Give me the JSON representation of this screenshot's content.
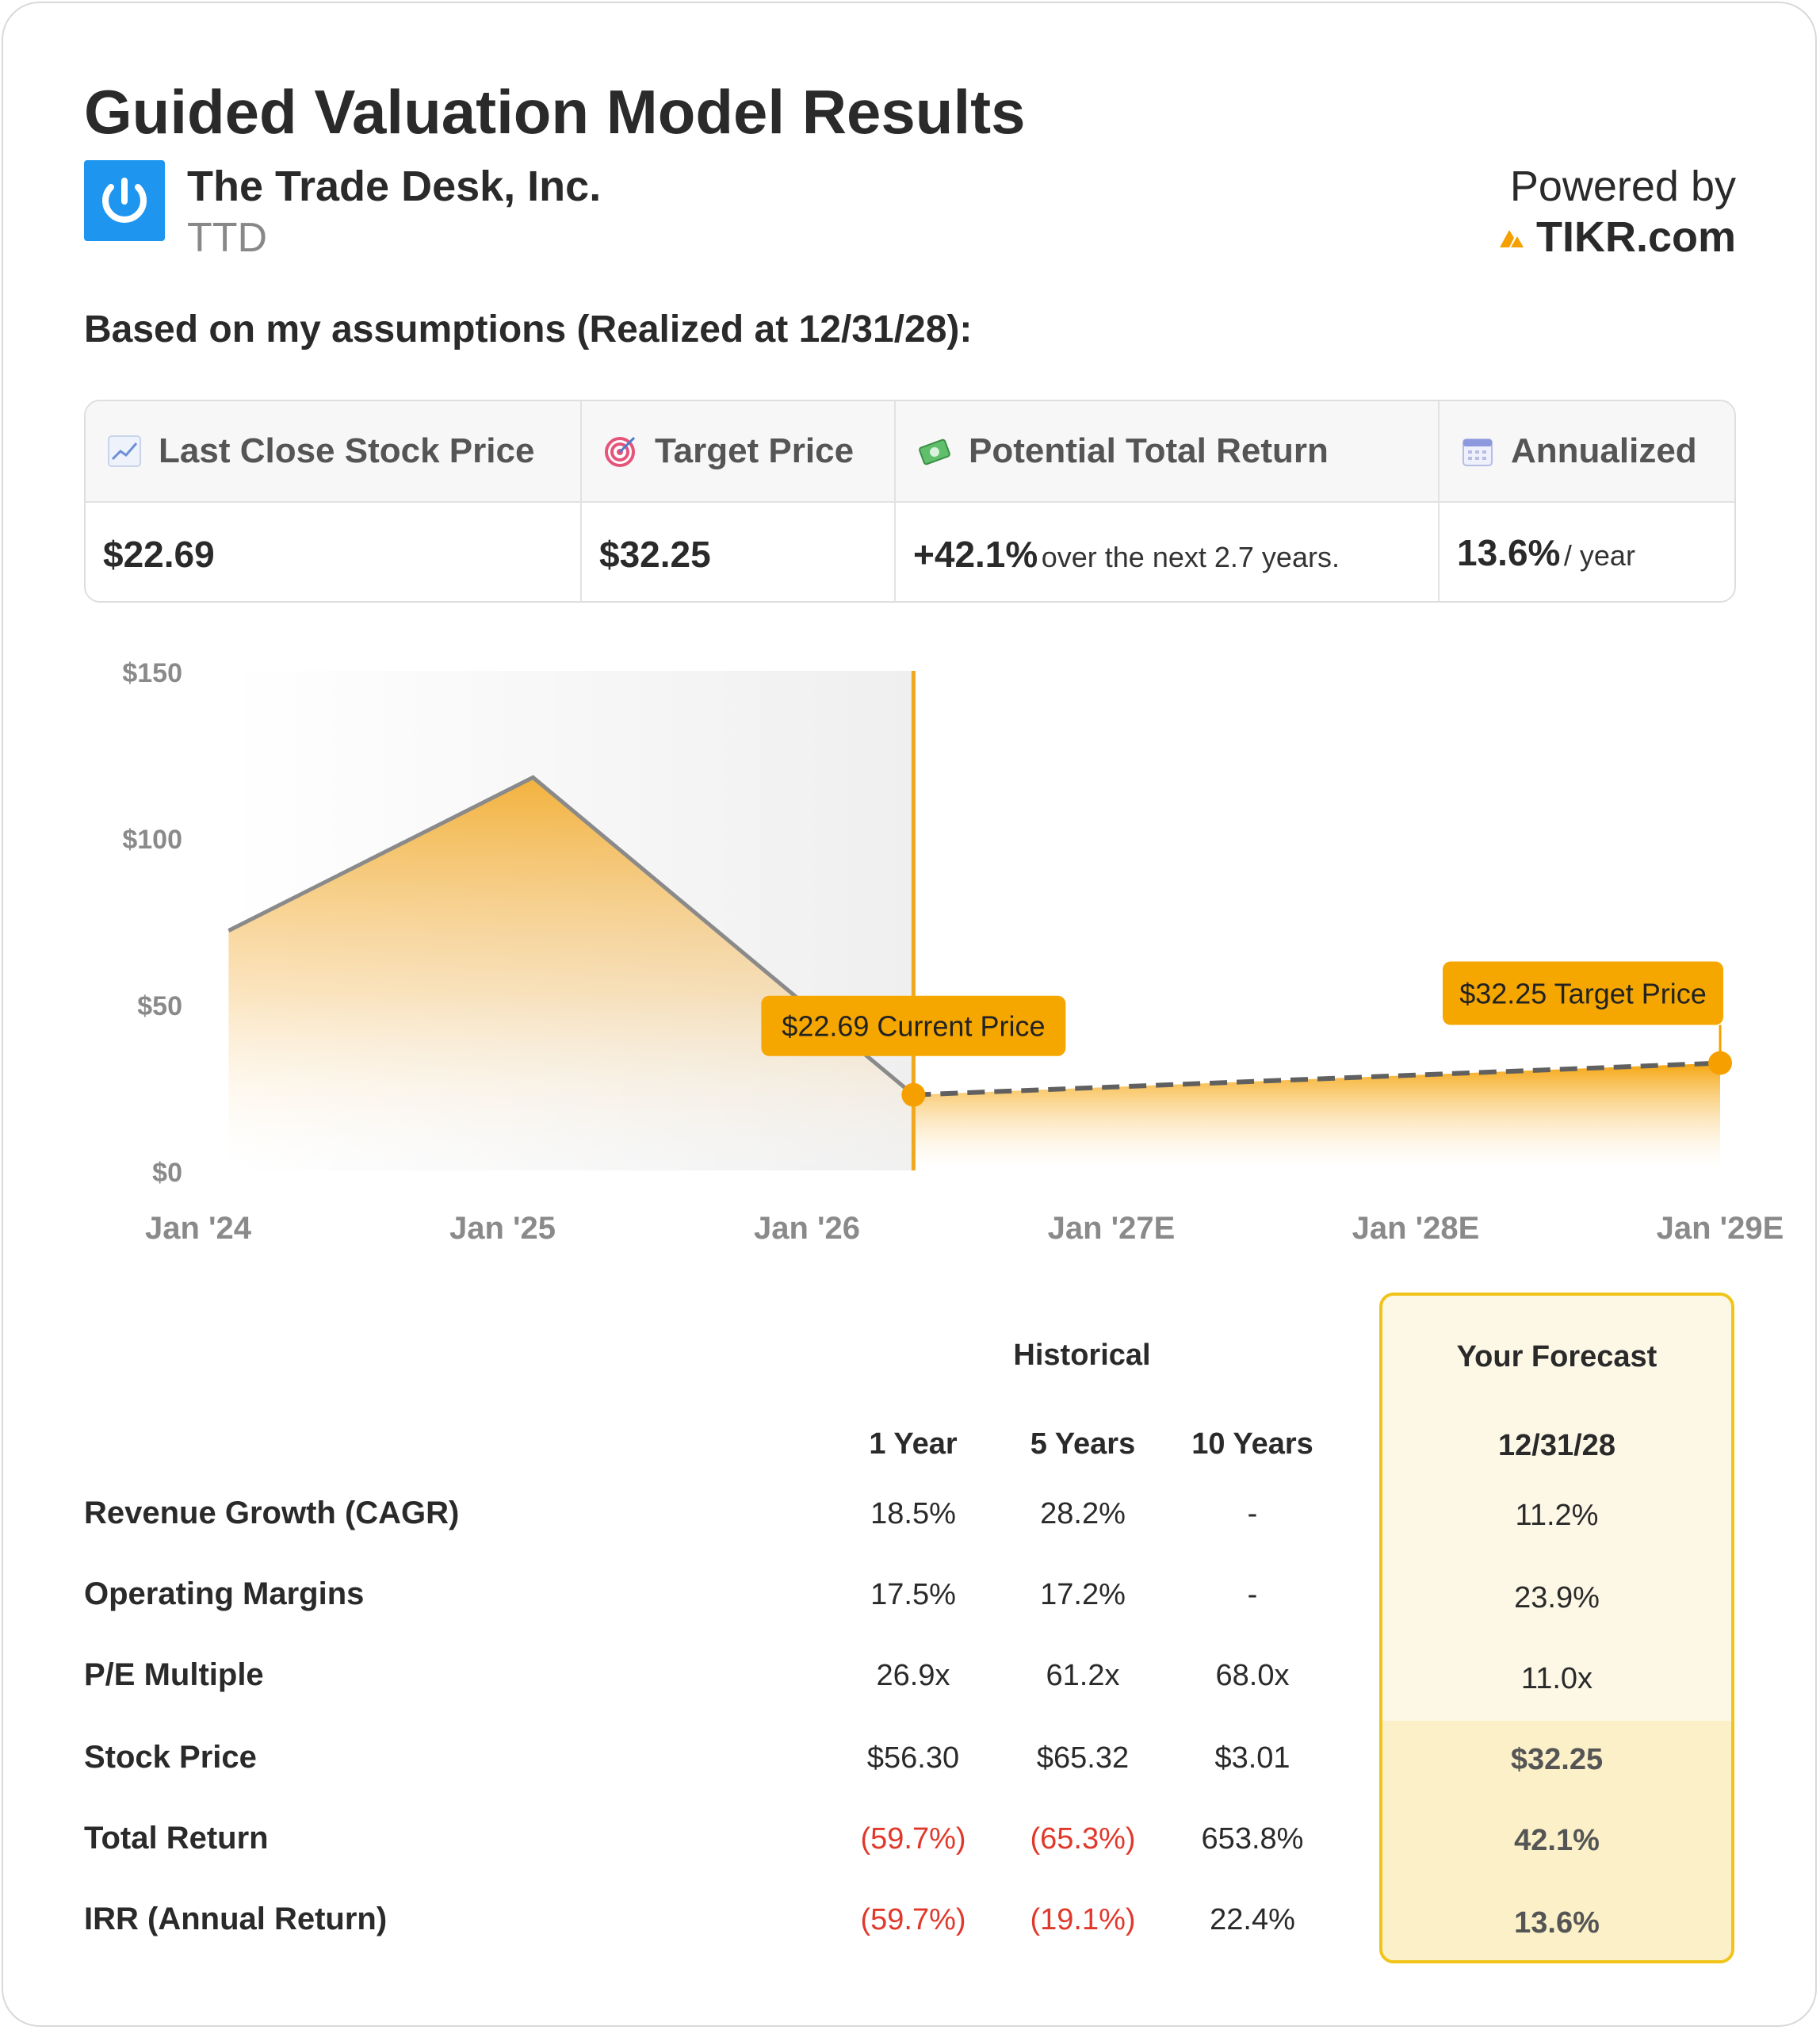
{
  "header": {
    "title": "Guided Valuation Model Results",
    "company": "The Trade Desk, Inc.",
    "ticker": "TTD",
    "powered_by": "Powered by",
    "brand": "TIKR.com",
    "subtitle": "Based on my assumptions (Realized at 12/31/28):"
  },
  "metrics": [
    {
      "icon": "chart-up-icon",
      "label": "Last Close Stock Price",
      "value": "$22.69",
      "suffix": ""
    },
    {
      "icon": "target-icon",
      "label": "Target Price",
      "value": "$32.25",
      "suffix": ""
    },
    {
      "icon": "money-icon",
      "label": "Potential Total Return",
      "value": "+42.1%",
      "suffix": "over the next 2.7 years."
    },
    {
      "icon": "calendar-icon",
      "label": "Annualized",
      "value": "13.6%",
      "suffix": "/ year"
    }
  ],
  "chart_data": {
    "type": "area",
    "x_tick_labels": [
      "Jan '24",
      "Jan '25",
      "Jan '26",
      "Jan '27E",
      "Jan '28E",
      "Jan '29E"
    ],
    "y_tick_labels": [
      "$150",
      "$100",
      "$50",
      "$0"
    ],
    "ylim": [
      0,
      150
    ],
    "historical": [
      {
        "x": 2024.1,
        "y": 72
      },
      {
        "x": 2025.1,
        "y": 118
      },
      {
        "x": 2026.35,
        "y": 22.69
      }
    ],
    "forecast": [
      {
        "x": 2026.35,
        "y": 22.69
      },
      {
        "x": 2029.0,
        "y": 32.25
      }
    ],
    "current_x": 2026.35,
    "annotations": {
      "current": "$22.69 Current Price",
      "target": "$32.25 Target Price"
    },
    "colors": {
      "accent": "#f5a000",
      "line": "#8a8a8a",
      "shade": "#ececec"
    }
  },
  "table": {
    "historical_title": "Historical",
    "forecast_title": "Your Forecast",
    "forecast_date": "12/31/28",
    "periods": [
      "1 Year",
      "5 Years",
      "10 Years"
    ],
    "rows": [
      {
        "label": "Revenue Growth (CAGR)",
        "values": [
          "18.5%",
          "28.2%",
          "-"
        ],
        "forecast": "11.2%"
      },
      {
        "label": "Operating Margins",
        "values": [
          "17.5%",
          "17.2%",
          "-"
        ],
        "forecast": "23.9%"
      },
      {
        "label": "P/E Multiple",
        "values": [
          "26.9x",
          "61.2x",
          "68.0x"
        ],
        "forecast": "11.0x"
      },
      {
        "label": "Stock Price",
        "values": [
          "$56.30",
          "$65.32",
          "$3.01"
        ],
        "forecast": "$32.25"
      },
      {
        "label": "Total Return",
        "values": [
          "(59.7%)",
          "(65.3%)",
          "653.8%"
        ],
        "forecast": "42.1%"
      },
      {
        "label": "IRR (Annual Return)",
        "values": [
          "(59.7%)",
          "(19.1%)",
          "22.4%"
        ],
        "forecast": "13.6%"
      }
    ]
  }
}
